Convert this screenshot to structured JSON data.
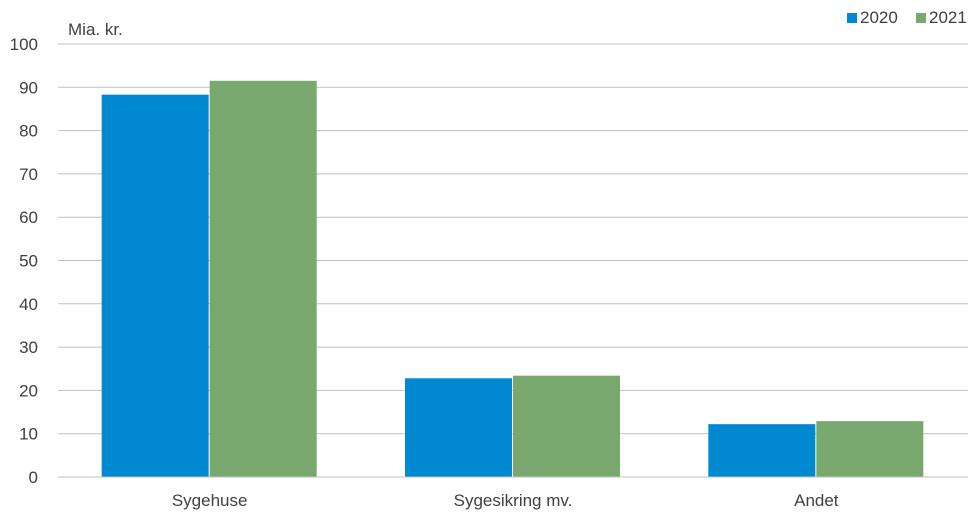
{
  "chart_data": {
    "type": "bar",
    "ylabel": "Mia. kr.",
    "categories": [
      "Sygehuse",
      "Sygesikring mv.",
      "Andet"
    ],
    "series": [
      {
        "name": "2020",
        "color": "#0088D0",
        "values": [
          88.3,
          22.8,
          12.2
        ]
      },
      {
        "name": "2021",
        "color": "#78A86E",
        "values": [
          91.5,
          23.4,
          12.9
        ]
      }
    ],
    "ylim": [
      0,
      100
    ],
    "yticks": [
      0,
      10,
      20,
      30,
      40,
      50,
      60,
      70,
      80,
      90,
      100
    ],
    "grid": true,
    "legend_position": "top-right"
  }
}
